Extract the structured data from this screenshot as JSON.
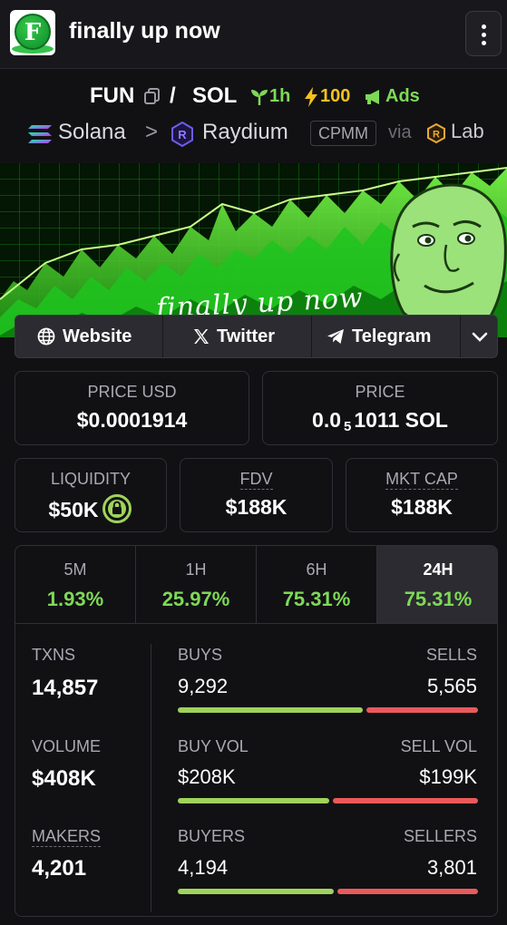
{
  "header": {
    "logo_letter": "F",
    "title": "finally up now"
  },
  "pair": {
    "base": "FUN",
    "separator": "/",
    "quote": "SOL",
    "age": "1h",
    "boost": "100",
    "ads": "Ads",
    "chain": "Solana",
    "dex": "Raydium",
    "pool_type": "CPMM",
    "via": "via",
    "launchpad": "Lab"
  },
  "banner": {
    "text": "finally up now"
  },
  "social": {
    "website": "Website",
    "twitter": "Twitter",
    "telegram": "Telegram"
  },
  "metrics": {
    "price_usd_label": "PRICE USD",
    "price_usd": "$0.0001914",
    "price_label": "PRICE",
    "price_prefix": "0.0",
    "price_zeros": "5",
    "price_digits": "1011 SOL",
    "liquidity_label": "LIQUIDITY",
    "liquidity": "$50K",
    "fdv_label": "FDV",
    "fdv": "$188K",
    "mcap_label": "MKT CAP",
    "mcap": "$188K"
  },
  "timeframes": [
    {
      "label": "5M",
      "change": "1.93%"
    },
    {
      "label": "1H",
      "change": "25.97%"
    },
    {
      "label": "6H",
      "change": "75.31%"
    },
    {
      "label": "24H",
      "change": "75.31%",
      "active": true
    }
  ],
  "stats": {
    "txns_label": "TXNS",
    "txns": "14,857",
    "buys_label": "BUYS",
    "buys": "9,292",
    "sells_label": "SELLS",
    "sells": "5,565",
    "volume_label": "VOLUME",
    "volume": "$408K",
    "buy_vol_label": "BUY VOL",
    "buy_vol": "$208K",
    "sell_vol_label": "SELL VOL",
    "sell_vol": "$199K",
    "makers_label": "MAKERS",
    "makers": "4,201",
    "buyers_label": "BUYERS",
    "buyers": "4,194",
    "sellers_label": "SELLERS",
    "sellers": "3,801",
    "buy_ratio": 0.625,
    "buy_vol_ratio": 0.51,
    "buyer_ratio": 0.525
  },
  "colors": {
    "up": "#7ed957",
    "buy_bar": "#9fd35a",
    "sell_bar": "#ea5a5a",
    "boost": "#f5c21b"
  }
}
